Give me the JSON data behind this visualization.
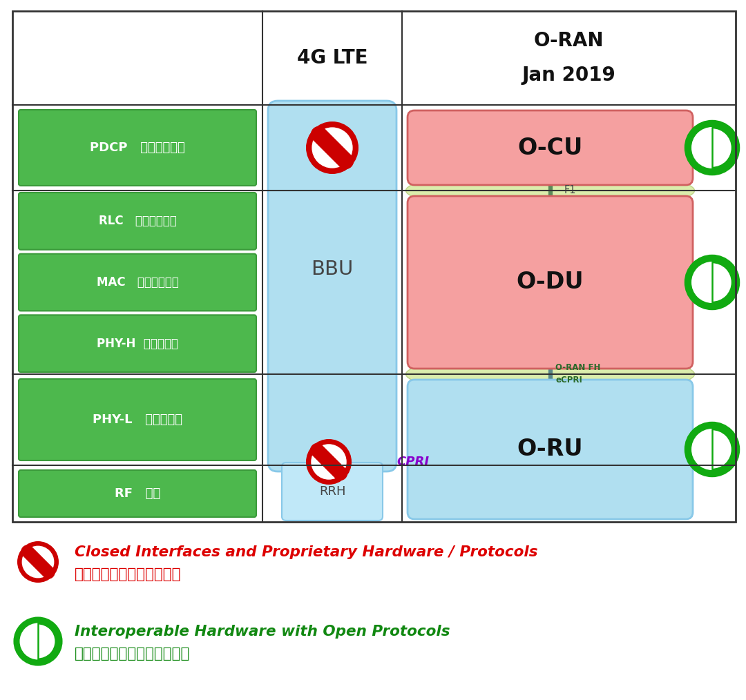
{
  "bg_color": "#ffffff",
  "green_box_facecolor": "#4db84d",
  "green_box_edgecolor": "#3a9a3a",
  "bbu_facecolor": "#b0dff0",
  "bbu_edgecolor": "#88c8e8",
  "rrh_facecolor": "#c0e8f8",
  "rrh_edgecolor": "#88c8e8",
  "ocu_facecolor": "#f5a0a0",
  "ocu_edgecolor": "#d06060",
  "odu_facecolor": "#f5a0a0",
  "odu_edgecolor": "#d06060",
  "oru_facecolor": "#b0dff0",
  "oru_edgecolor": "#88c8e8",
  "ellipse_facecolor": "#d0e890",
  "ellipse_edgecolor": "#b0c870",
  "no_sign_color": "#cc0000",
  "open_ring_color": "#11aa11",
  "connector_f1_color": "#5a8a5a",
  "connector_fh_color": "#5a8888",
  "cpri_color": "#8800cc",
  "fh_text_color": "#2a6a2a",
  "table_line_color": "#333333",
  "text_color_black": "#111111",
  "legend_red": "#dd0000",
  "legend_green": "#118811",
  "row_label_pdcp": "PDCP   分组数据汇聚",
  "row_label_rlc": "RLC   无线链路控制",
  "row_label_mac": "MAC   媒体接入控制",
  "row_label_phyh": "PHY-H  物理层上层",
  "row_label_phyl": "PHY-L   物理层下层",
  "row_label_rf": "RF   射频",
  "legend_closed_en": "Closed Interfaces and Proprietary Hardware / Protocols",
  "legend_closed_cn": "封闭接口和专有硬件及协议",
  "legend_open_en": "Interoperable Hardware with Open Protocols",
  "legend_open_cn": "使用开放协议的可互操作硬件"
}
